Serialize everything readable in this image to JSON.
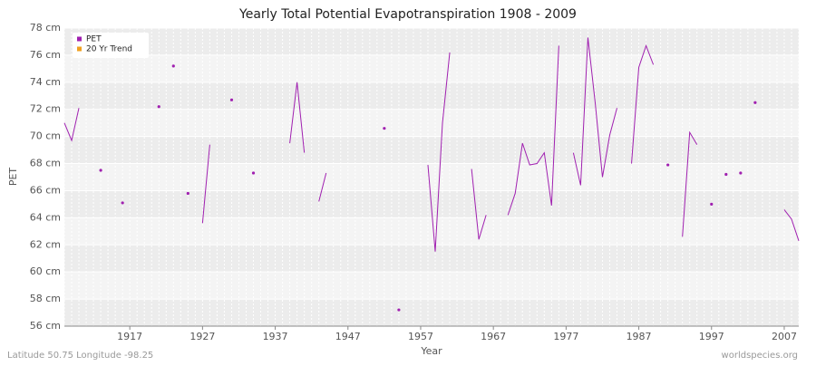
{
  "chart_data": {
    "type": "line",
    "title": "Yearly Total Potential Evapotranspiration 1908 - 2009",
    "x_label": "Year",
    "y_label": "PET",
    "footer_left": "Latitude 50.75 Longitude -98.25",
    "footer_right": "worldspecies.org",
    "x": [
      1908,
      1909,
      1910,
      1911,
      1912,
      1913,
      1914,
      1915,
      1916,
      1917,
      1918,
      1919,
      1920,
      1921,
      1922,
      1923,
      1924,
      1925,
      1926,
      1927,
      1928,
      1929,
      1930,
      1931,
      1932,
      1933,
      1934,
      1935,
      1936,
      1937,
      1938,
      1939,
      1940,
      1941,
      1942,
      1943,
      1944,
      1945,
      1946,
      1947,
      1948,
      1949,
      1950,
      1951,
      1952,
      1953,
      1954,
      1955,
      1956,
      1957,
      1958,
      1959,
      1960,
      1961,
      1962,
      1963,
      1964,
      1965,
      1966,
      1967,
      1968,
      1969,
      1970,
      1971,
      1972,
      1973,
      1974,
      1975,
      1976,
      1977,
      1978,
      1979,
      1980,
      1981,
      1982,
      1983,
      1984,
      1985,
      1986,
      1987,
      1988,
      1989,
      1990,
      1991,
      1992,
      1993,
      1994,
      1995,
      1996,
      1997,
      1998,
      1999,
      2000,
      2001,
      2002,
      2003,
      2004,
      2005,
      2006,
      2007,
      2008,
      2009
    ],
    "series": [
      {
        "name": "PET",
        "color": "#a020b0",
        "values": [
          71.0,
          69.7,
          72.1,
          null,
          null,
          67.5,
          null,
          null,
          65.1,
          null,
          null,
          null,
          null,
          72.2,
          null,
          75.2,
          null,
          65.8,
          null,
          63.6,
          69.4,
          null,
          null,
          72.7,
          null,
          null,
          67.3,
          null,
          null,
          null,
          null,
          69.5,
          74.0,
          68.8,
          null,
          65.2,
          67.3,
          null,
          null,
          null,
          null,
          null,
          null,
          null,
          70.6,
          null,
          57.2,
          null,
          null,
          null,
          67.9,
          61.5,
          71.0,
          76.2,
          null,
          null,
          67.6,
          62.4,
          64.2,
          null,
          null,
          64.2,
          65.8,
          69.5,
          67.9,
          68.0,
          68.8,
          64.9,
          76.7,
          null,
          68.8,
          66.4,
          77.3,
          72.5,
          67.0,
          70.1,
          72.1,
          null,
          68.0,
          75.1,
          76.7,
          75.3,
          null,
          67.9,
          null,
          62.6,
          70.3,
          69.4,
          null,
          65.0,
          null,
          67.2,
          null,
          67.3,
          null,
          72.5,
          null,
          null,
          null,
          64.6,
          63.9,
          62.3
        ]
      },
      {
        "name": "20 Yr Trend",
        "color": "#f0a020",
        "values": [
          null,
          null,
          null,
          null,
          null,
          null,
          null,
          null,
          null,
          null,
          null,
          null,
          null,
          null,
          null,
          null,
          null,
          null,
          null,
          null,
          null,
          null,
          null,
          null,
          null,
          null,
          null,
          null,
          null,
          null,
          null,
          null,
          null,
          null,
          null,
          null,
          null,
          null,
          null,
          null,
          null,
          null,
          null,
          null,
          null,
          null,
          null,
          null,
          null,
          null,
          null,
          null,
          null,
          null,
          null,
          null,
          null,
          null,
          null,
          null,
          null,
          null,
          null,
          null,
          null,
          null,
          null,
          null,
          null,
          null,
          null,
          null,
          null,
          null,
          null,
          null,
          null,
          null,
          null,
          null,
          null,
          null,
          null,
          null,
          null,
          null,
          null,
          null,
          null,
          null,
          null,
          null,
          null,
          null,
          null,
          null,
          null,
          null,
          null,
          null,
          null,
          null
        ]
      }
    ],
    "xlim": [
      1908,
      2009
    ],
    "xticks": [
      1917,
      1927,
      1937,
      1947,
      1957,
      1967,
      1977,
      1987,
      1997,
      2007
    ],
    "ylim": [
      56,
      78
    ],
    "yticks": [
      {
        "value": 56,
        "label": "56 cm"
      },
      {
        "value": 58,
        "label": "58 cm"
      },
      {
        "value": 60,
        "label": "60 cm"
      },
      {
        "value": 62,
        "label": "62 cm"
      },
      {
        "value": 64,
        "label": "64 cm"
      },
      {
        "value": 66,
        "label": "66 cm"
      },
      {
        "value": 68,
        "label": "68 cm"
      },
      {
        "value": 70,
        "label": "70 cm"
      },
      {
        "value": 72,
        "label": "72 cm"
      },
      {
        "value": 74,
        "label": "74 cm"
      },
      {
        "value": 76,
        "label": "76 cm"
      },
      {
        "value": 78,
        "label": "78 cm"
      }
    ],
    "grid": true,
    "legend": "top-left"
  }
}
